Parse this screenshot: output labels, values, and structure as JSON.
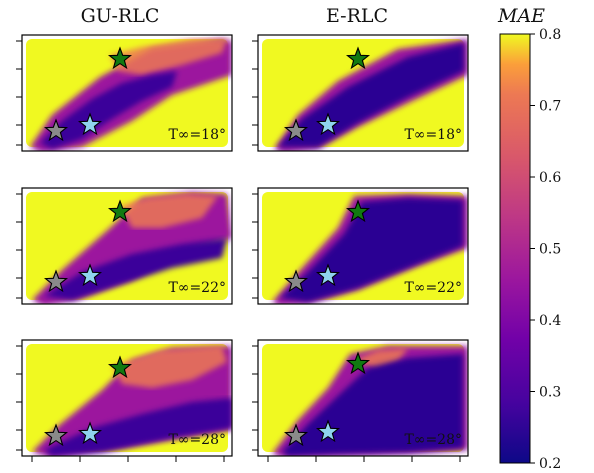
{
  "chart_data": {
    "type": "scatter",
    "columns": [
      "GU-RLC",
      "E-RLC"
    ],
    "rows": [
      {
        "annotation": "T∞=18°"
      },
      {
        "annotation": "T∞=22°"
      },
      {
        "annotation": "T∞=28°"
      }
    ],
    "colorbar": {
      "title": "MAE",
      "range": [
        0.2,
        0.8
      ],
      "ticks": [
        "0.2",
        "0.3",
        "0.4",
        "0.5",
        "0.6",
        "0.7",
        "0.8"
      ],
      "colormap": "plasma"
    },
    "markers": [
      {
        "name": "green-star",
        "color": "#117a11"
      },
      {
        "name": "gray-star",
        "color": "#8a8a8a"
      },
      {
        "name": "lightblue-star",
        "color": "#8fd3ee"
      }
    ],
    "axis_tick_labels": "none"
  }
}
